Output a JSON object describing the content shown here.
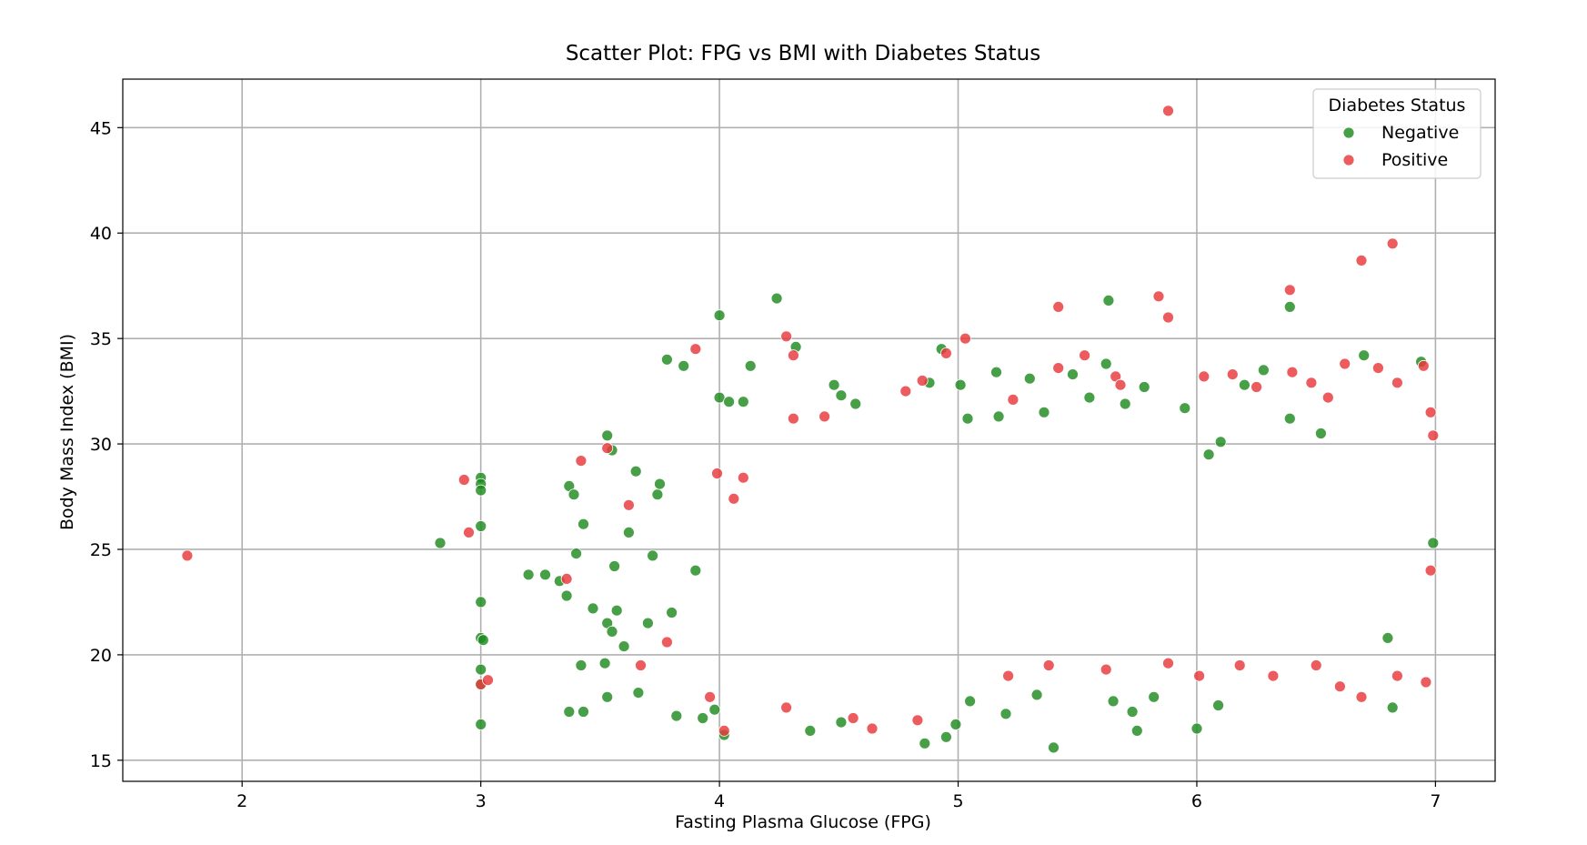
{
  "chart_data": {
    "type": "scatter",
    "title": "Scatter Plot: FPG vs BMI with Diabetes Status",
    "xlabel": "Fasting Plasma Glucose (FPG)",
    "ylabel": "Body Mass Index (BMI)",
    "xlim": [
      1.5,
      7.25
    ],
    "ylim": [
      14,
      47.3
    ],
    "xticks": [
      2,
      3,
      4,
      5,
      6,
      7
    ],
    "yticks": [
      15,
      20,
      25,
      30,
      35,
      40,
      45
    ],
    "grid": true,
    "legend": {
      "title": "Diabetes Status",
      "placement": "top-right",
      "entries": [
        "Negative",
        "Positive"
      ]
    },
    "series": [
      {
        "name": "Negative",
        "color": "#1f8a1f",
        "points": [
          [
            2.83,
            25.3
          ],
          [
            3.0,
            28.4
          ],
          [
            3.0,
            28.1
          ],
          [
            3.0,
            27.8
          ],
          [
            3.0,
            26.1
          ],
          [
            3.0,
            22.5
          ],
          [
            3.0,
            20.8
          ],
          [
            3.01,
            20.7
          ],
          [
            3.0,
            19.3
          ],
          [
            3.0,
            18.6
          ],
          [
            3.0,
            16.7
          ],
          [
            3.2,
            23.8
          ],
          [
            3.27,
            23.8
          ],
          [
            3.33,
            23.5
          ],
          [
            3.36,
            22.8
          ],
          [
            3.37,
            28.0
          ],
          [
            3.39,
            27.6
          ],
          [
            3.4,
            24.8
          ],
          [
            3.43,
            26.2
          ],
          [
            3.42,
            19.5
          ],
          [
            3.37,
            17.3
          ],
          [
            3.43,
            17.3
          ],
          [
            3.47,
            22.2
          ],
          [
            3.53,
            30.4
          ],
          [
            3.55,
            29.7
          ],
          [
            3.56,
            24.2
          ],
          [
            3.53,
            21.5
          ],
          [
            3.55,
            21.1
          ],
          [
            3.57,
            22.1
          ],
          [
            3.52,
            19.6
          ],
          [
            3.53,
            18.0
          ],
          [
            3.6,
            20.4
          ],
          [
            3.62,
            25.8
          ],
          [
            3.65,
            28.7
          ],
          [
            3.66,
            18.2
          ],
          [
            3.7,
            21.5
          ],
          [
            3.72,
            24.7
          ],
          [
            3.74,
            27.6
          ],
          [
            3.75,
            28.1
          ],
          [
            3.78,
            34.0
          ],
          [
            3.8,
            22.0
          ],
          [
            3.82,
            17.1
          ],
          [
            3.85,
            33.7
          ],
          [
            3.9,
            24.0
          ],
          [
            3.93,
            17.0
          ],
          [
            4.0,
            36.1
          ],
          [
            4.0,
            32.2
          ],
          [
            4.04,
            32.0
          ],
          [
            4.1,
            32.0
          ],
          [
            4.13,
            33.7
          ],
          [
            4.24,
            36.9
          ],
          [
            4.32,
            34.6
          ],
          [
            4.48,
            32.8
          ],
          [
            4.51,
            32.3
          ],
          [
            4.57,
            31.9
          ],
          [
            4.88,
            32.9
          ],
          [
            4.93,
            34.5
          ],
          [
            5.01,
            32.8
          ],
          [
            5.04,
            31.2
          ],
          [
            5.16,
            33.4
          ],
          [
            5.17,
            31.3
          ],
          [
            5.3,
            33.1
          ],
          [
            5.36,
            31.5
          ],
          [
            5.48,
            33.3
          ],
          [
            5.55,
            32.2
          ],
          [
            5.62,
            33.8
          ],
          [
            5.63,
            36.8
          ],
          [
            5.7,
            31.9
          ],
          [
            5.78,
            32.7
          ],
          [
            5.95,
            31.7
          ],
          [
            6.05,
            29.5
          ],
          [
            6.1,
            30.1
          ],
          [
            6.2,
            32.8
          ],
          [
            6.28,
            33.5
          ],
          [
            6.39,
            36.5
          ],
          [
            6.39,
            31.2
          ],
          [
            6.52,
            30.5
          ],
          [
            6.7,
            34.2
          ],
          [
            6.94,
            33.9
          ],
          [
            6.99,
            25.3
          ],
          [
            6.8,
            20.8
          ],
          [
            6.82,
            17.5
          ],
          [
            6.0,
            16.5
          ],
          [
            6.09,
            17.6
          ],
          [
            5.82,
            18.0
          ],
          [
            5.73,
            17.3
          ],
          [
            5.75,
            16.4
          ],
          [
            5.4,
            15.6
          ],
          [
            4.86,
            15.8
          ],
          [
            4.95,
            16.1
          ],
          [
            4.99,
            16.7
          ],
          [
            4.51,
            16.8
          ],
          [
            4.38,
            16.4
          ],
          [
            4.02,
            16.2
          ],
          [
            3.98,
            17.4
          ],
          [
            5.05,
            17.8
          ],
          [
            5.2,
            17.2
          ],
          [
            5.33,
            18.1
          ],
          [
            5.65,
            17.8
          ]
        ]
      },
      {
        "name": "Positive",
        "color": "#e8383a",
        "points": [
          [
            1.77,
            24.7
          ],
          [
            2.93,
            28.3
          ],
          [
            2.95,
            25.8
          ],
          [
            3.0,
            18.6
          ],
          [
            3.03,
            18.8
          ],
          [
            3.36,
            23.6
          ],
          [
            3.42,
            29.2
          ],
          [
            3.53,
            29.8
          ],
          [
            3.62,
            27.1
          ],
          [
            3.67,
            19.5
          ],
          [
            3.78,
            20.6
          ],
          [
            3.9,
            34.5
          ],
          [
            3.99,
            28.6
          ],
          [
            4.06,
            27.4
          ],
          [
            4.1,
            28.4
          ],
          [
            4.02,
            16.4
          ],
          [
            4.28,
            35.1
          ],
          [
            4.31,
            34.2
          ],
          [
            4.31,
            31.2
          ],
          [
            4.44,
            31.3
          ],
          [
            4.64,
            16.5
          ],
          [
            4.78,
            32.5
          ],
          [
            4.85,
            33.0
          ],
          [
            4.95,
            34.3
          ],
          [
            5.03,
            35.0
          ],
          [
            5.23,
            32.1
          ],
          [
            5.42,
            36.5
          ],
          [
            5.42,
            33.6
          ],
          [
            5.53,
            34.2
          ],
          [
            5.66,
            33.2
          ],
          [
            5.68,
            32.8
          ],
          [
            5.84,
            37.0
          ],
          [
            5.88,
            36.0
          ],
          [
            5.88,
            45.8
          ],
          [
            6.03,
            33.2
          ],
          [
            6.15,
            33.3
          ],
          [
            6.25,
            32.7
          ],
          [
            6.39,
            37.3
          ],
          [
            6.4,
            33.4
          ],
          [
            6.48,
            32.9
          ],
          [
            6.55,
            32.2
          ],
          [
            6.62,
            33.8
          ],
          [
            6.69,
            38.7
          ],
          [
            6.82,
            39.5
          ],
          [
            6.76,
            33.6
          ],
          [
            6.84,
            32.9
          ],
          [
            6.95,
            33.7
          ],
          [
            6.98,
            31.5
          ],
          [
            6.99,
            30.4
          ],
          [
            6.98,
            24.0
          ],
          [
            6.96,
            18.7
          ],
          [
            6.84,
            19.0
          ],
          [
            6.69,
            18.0
          ],
          [
            6.6,
            18.5
          ],
          [
            6.5,
            19.5
          ],
          [
            6.32,
            19.0
          ],
          [
            6.18,
            19.5
          ],
          [
            6.01,
            19.0
          ],
          [
            5.88,
            19.6
          ],
          [
            5.62,
            19.3
          ],
          [
            5.38,
            19.5
          ],
          [
            5.21,
            19.0
          ],
          [
            4.83,
            16.9
          ],
          [
            4.56,
            17.0
          ],
          [
            4.28,
            17.5
          ],
          [
            3.96,
            18.0
          ]
        ]
      }
    ]
  }
}
